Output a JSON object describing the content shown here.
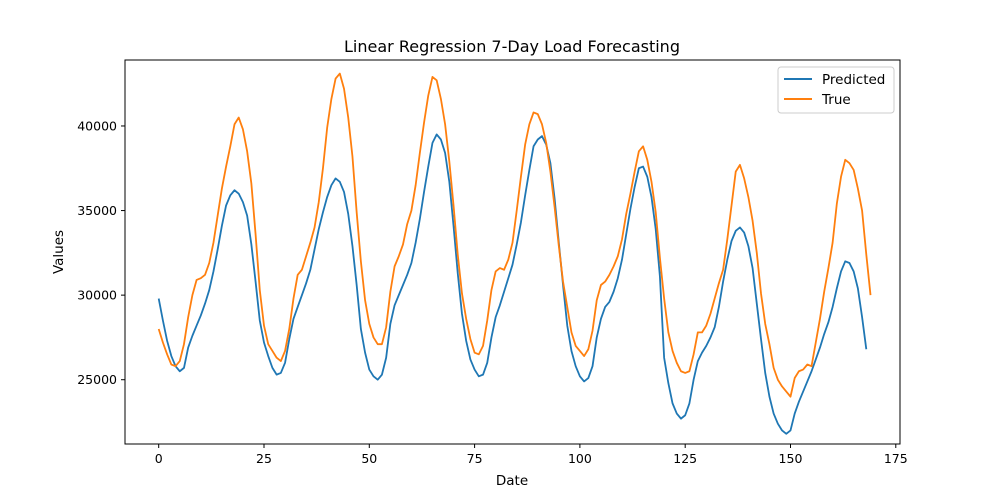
{
  "chart_data": {
    "type": "line",
    "title": "Linear Regression 7-Day Load Forecasting",
    "xlabel": "Date",
    "ylabel": "Values",
    "xlim": [
      -8,
      176
    ],
    "ylim": [
      21200,
      43900
    ],
    "xticks": [
      0,
      25,
      50,
      75,
      100,
      125,
      150,
      175
    ],
    "yticks": [
      25000,
      30000,
      35000,
      40000
    ],
    "grid": false,
    "legend_position": "top-right",
    "series": [
      {
        "name": "Predicted",
        "color": "#1f77b4",
        "values": [
          29800,
          28500,
          27300,
          26400,
          25800,
          25500,
          25700,
          26900,
          27600,
          28200,
          28800,
          29500,
          30300,
          31400,
          32700,
          34100,
          35300,
          35900,
          36200,
          36000,
          35500,
          34700,
          33000,
          30800,
          28500,
          27200,
          26400,
          25700,
          25300,
          25400,
          26000,
          27400,
          28600,
          29300,
          30000,
          30700,
          31500,
          32700,
          33900,
          34900,
          35800,
          36500,
          36900,
          36700,
          36100,
          34800,
          32900,
          30600,
          28000,
          26600,
          25600,
          25200,
          25000,
          25300,
          26300,
          28300,
          29400,
          30000,
          30600,
          31200,
          31900,
          33100,
          34500,
          36100,
          37600,
          39000,
          39500,
          39200,
          38400,
          36700,
          34100,
          31300,
          28900,
          27300,
          26200,
          25600,
          25200,
          25300,
          26000,
          27500,
          28700,
          29400,
          30200,
          31000,
          31800,
          33000,
          34300,
          35900,
          37400,
          38800,
          39200,
          39400,
          38900,
          37800,
          35700,
          33100,
          30600,
          28200,
          26700,
          25800,
          25200,
          24900,
          25100,
          25800,
          27500,
          28600,
          29300,
          29600,
          30200,
          31000,
          32100,
          33600,
          35100,
          36400,
          37500,
          37600,
          37000,
          35800,
          33900,
          31100,
          26300,
          24800,
          23600,
          23000,
          22700,
          22900,
          23600,
          25000,
          26100,
          26600,
          27000,
          27500,
          28100,
          29300,
          30800,
          32100,
          33200,
          33800,
          34000,
          33700,
          32900,
          31600,
          29500,
          27400,
          25400,
          24000,
          23000,
          22400,
          22000,
          21800,
          22000,
          23000,
          23700,
          24300,
          24900,
          25500,
          26200,
          26900,
          27700,
          28400,
          29300,
          30400,
          31400,
          32000,
          31900,
          31400,
          30400,
          28700,
          26800
        ]
      },
      {
        "name": "True",
        "color": "#ff7f0e",
        "values": [
          28000,
          27200,
          26500,
          25900,
          25800,
          26100,
          27100,
          28700,
          30000,
          30900,
          31000,
          31200,
          31900,
          33100,
          34700,
          36300,
          37600,
          38800,
          40100,
          40500,
          39800,
          38500,
          36600,
          33600,
          30300,
          28200,
          27100,
          26700,
          26300,
          26100,
          26700,
          28000,
          29800,
          31200,
          31500,
          32300,
          33100,
          34000,
          35500,
          37500,
          39900,
          41600,
          42800,
          43100,
          42200,
          40500,
          38200,
          34900,
          32000,
          29700,
          28300,
          27500,
          27100,
          27100,
          28100,
          30200,
          31700,
          32300,
          33000,
          34200,
          35000,
          36500,
          38400,
          40200,
          41800,
          42900,
          42700,
          41600,
          40100,
          37900,
          35300,
          32400,
          30100,
          28600,
          27400,
          26600,
          26500,
          27000,
          28500,
          30300,
          31400,
          31600,
          31500,
          32100,
          33100,
          35000,
          37000,
          38900,
          40100,
          40800,
          40700,
          40100,
          39000,
          37300,
          35200,
          32900,
          30800,
          29300,
          27800,
          27000,
          26700,
          26400,
          26800,
          27900,
          29700,
          30600,
          30800,
          31200,
          31700,
          32300,
          33300,
          34800,
          36000,
          37300,
          38500,
          38800,
          38000,
          36700,
          34900,
          32200,
          29800,
          27800,
          26700,
          26000,
          25500,
          25400,
          25500,
          26500,
          27800,
          27800,
          28200,
          28900,
          29800,
          30700,
          31500,
          33300,
          35300,
          37300,
          37700,
          36900,
          35800,
          34400,
          32500,
          30100,
          28300,
          27100,
          25700,
          25000,
          24600,
          24300,
          24000,
          25100,
          25500,
          25600,
          25900,
          25800,
          27200,
          28600,
          30200,
          31600,
          33100,
          35400,
          37000,
          38000,
          37800,
          37400,
          36300,
          35000,
          32400,
          30000
        ]
      }
    ]
  }
}
